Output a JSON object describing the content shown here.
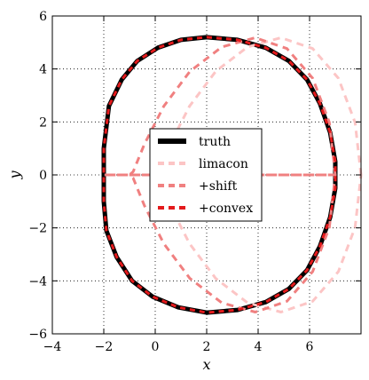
{
  "chart_data": {
    "type": "line",
    "xlabel": "x",
    "ylabel": "y",
    "xlim": [
      -4,
      8
    ],
    "ylim": [
      -6,
      6
    ],
    "xticks": [
      -4,
      -2,
      0,
      2,
      4,
      6
    ],
    "yticks": [
      -6,
      -4,
      -2,
      0,
      2,
      4,
      6
    ],
    "xtick_labels": [
      "−4",
      "−2",
      "0",
      "2",
      "4",
      "6"
    ],
    "ytick_labels": [
      "−6",
      "−4",
      "−2",
      "0",
      "2",
      "4",
      "6"
    ],
    "grid": true,
    "legend_position": "center",
    "series": [
      {
        "name": "truth",
        "color": "#000000",
        "style": "solid",
        "closed": true,
        "x": [
          2.0,
          3.2,
          4.3,
          5.2,
          5.9,
          6.4,
          6.8,
          7.0,
          7.0,
          6.8,
          6.4,
          5.9,
          5.2,
          4.3,
          3.2,
          2.0,
          0.9,
          -0.1,
          -0.9,
          -1.5,
          -1.9,
          -2.0,
          -2.0,
          -2.0,
          -1.8,
          -1.3,
          -0.7,
          0.1,
          1.0
        ],
        "y": [
          5.2,
          5.1,
          4.8,
          4.3,
          3.6,
          2.7,
          1.6,
          0.5,
          -0.5,
          -1.6,
          -2.7,
          -3.6,
          -4.3,
          -4.8,
          -5.1,
          -5.2,
          -5.0,
          -4.6,
          -4.0,
          -3.1,
          -2.1,
          -1.0,
          0.0,
          1.0,
          2.6,
          3.6,
          4.3,
          4.8,
          5.1
        ]
      },
      {
        "name": "limacon",
        "color": "#fcc5c5",
        "style": "dashed",
        "closed": true,
        "x": [
          8.0,
          7.77,
          7.12,
          6.12,
          4.89,
          3.59,
          2.35,
          1.33,
          0.58,
          0.14,
          0.0,
          0.14,
          0.58,
          1.33,
          2.35,
          3.59,
          4.89,
          6.12,
          7.12,
          7.77
        ],
        "y": [
          0.0,
          1.98,
          3.65,
          4.77,
          5.18,
          4.83,
          3.91,
          2.59,
          1.16,
          0.12,
          0.0,
          -0.12,
          -1.16,
          -2.59,
          -3.91,
          -4.83,
          -5.18,
          -4.77,
          -3.65,
          -1.98
        ]
      },
      {
        "name": "+shift",
        "color": "#f08080",
        "style": "dashed",
        "closed": true,
        "x": [
          7.0,
          6.77,
          6.12,
          5.12,
          3.89,
          2.59,
          1.35,
          0.33,
          -0.42,
          -0.86,
          -1.0,
          -0.86,
          -0.42,
          0.33,
          1.35,
          2.59,
          3.89,
          5.12,
          6.12,
          6.77,
          7.0,
          6.9,
          6.6,
          6.1,
          5.4,
          4.5,
          3.4,
          2.2,
          1.0,
          -0.1,
          -1.0,
          -1.6,
          -1.95,
          -2.0,
          -1.85,
          -1.5,
          -1.1,
          -1.0
        ],
        "y": [
          0.0,
          1.98,
          3.65,
          4.77,
          5.18,
          4.83,
          3.91,
          2.59,
          1.16,
          0.12,
          0.0,
          -0.12,
          -1.16,
          -2.59,
          -3.91,
          -4.83,
          -5.18,
          -4.77,
          -3.65,
          -1.98,
          0.0,
          0.0,
          0.0,
          0.0,
          0.0,
          0.0,
          0.0,
          0.0,
          0.0,
          0.0,
          0.0,
          0.0,
          0.0,
          0.0,
          0.0,
          0.0,
          0.0,
          0.0
        ]
      },
      {
        "name": "+convex",
        "color": "#e41a1c",
        "style": "dashed",
        "closed": true,
        "x": [
          2.0,
          3.2,
          4.3,
          5.2,
          5.9,
          6.4,
          6.8,
          7.0,
          7.0,
          6.8,
          6.4,
          5.9,
          5.2,
          4.3,
          3.2,
          2.0,
          0.9,
          -0.1,
          -0.9,
          -1.5,
          -1.9,
          -2.0,
          -2.0,
          -2.0,
          -1.8,
          -1.3,
          -0.7,
          0.1,
          1.0
        ],
        "y": [
          5.2,
          5.1,
          4.8,
          4.3,
          3.6,
          2.7,
          1.6,
          0.5,
          -0.5,
          -1.6,
          -2.7,
          -3.6,
          -4.3,
          -4.8,
          -5.1,
          -5.2,
          -5.0,
          -4.6,
          -4.0,
          -3.1,
          -2.1,
          -1.0,
          0.0,
          1.0,
          2.6,
          3.6,
          4.3,
          4.8,
          5.1
        ]
      }
    ],
    "legend": [
      {
        "label": "truth",
        "color": "#000000",
        "style": "solid"
      },
      {
        "label": "limacon",
        "color": "#fcc5c5",
        "style": "dashed"
      },
      {
        "label": "+shift",
        "color": "#f08080",
        "style": "dashed"
      },
      {
        "label": "+convex",
        "color": "#e41a1c",
        "style": "dashed"
      }
    ]
  }
}
